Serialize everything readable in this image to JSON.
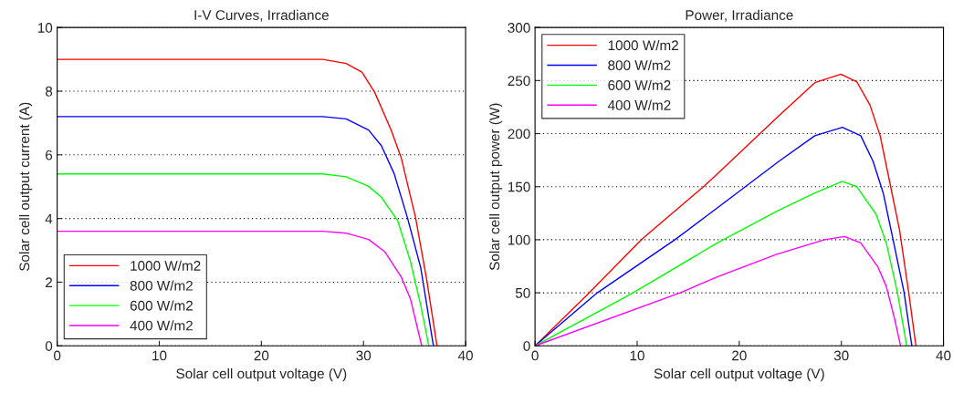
{
  "chart_data": [
    {
      "type": "line",
      "title": "I-V Curves, Irradiance",
      "xlabel": "Solar cell output voltage (V)",
      "ylabel": "Solar cell output current (A)",
      "xlim": [
        0,
        40
      ],
      "ylim": [
        0,
        10
      ],
      "xticks": [
        0,
        10,
        20,
        30,
        40
      ],
      "yticks": [
        0,
        2,
        4,
        6,
        8,
        10
      ],
      "grid": "y",
      "legend": "bottom left",
      "line_style": "solid",
      "marker": "none",
      "series": [
        {
          "name": "1000 W/m2",
          "color": "#ff0000",
          "x": [
            0,
            26,
            28.3,
            29.85,
            31.1,
            32.7,
            33.7,
            35.1,
            36.2,
            37.2
          ],
          "values": [
            9,
            9,
            8.87,
            8.6,
            7.96,
            6.78,
            5.9,
            4.03,
            2.06,
            0
          ]
        },
        {
          "name": "800 W/m2",
          "color": "#0000ff",
          "x": [
            0,
            26,
            28.3,
            30.5,
            31.75,
            33.0,
            34.3,
            35.6,
            36.85
          ],
          "values": [
            7.2,
            7.2,
            7.13,
            6.78,
            6.29,
            5.41,
            4.03,
            2.46,
            0
          ]
        },
        {
          "name": "600 W/m2",
          "color": "#00ff00",
          "x": [
            0,
            26,
            28.3,
            30.5,
            31.75,
            33.35,
            34.6,
            35.6,
            36.4
          ],
          "values": [
            5.4,
            5.4,
            5.31,
            5.01,
            4.67,
            3.93,
            2.65,
            1.28,
            0
          ]
        },
        {
          "name": "400 W/m2",
          "color": "#ff00ff",
          "x": [
            0,
            26,
            28.3,
            30.5,
            32.1,
            33.7,
            34.6,
            35.7
          ],
          "values": [
            3.6,
            3.6,
            3.54,
            3.34,
            2.95,
            2.16,
            1.47,
            0
          ]
        }
      ]
    },
    {
      "type": "line",
      "title": "Power, Irradiance",
      "xlabel": "Solar cell output voltage (V)",
      "ylabel": "Solar cell output power (W)",
      "xlim": [
        0,
        40
      ],
      "ylim": [
        0,
        300
      ],
      "xticks": [
        0,
        10,
        20,
        30,
        40
      ],
      "yticks": [
        0,
        50,
        100,
        150,
        200,
        250,
        300
      ],
      "grid": "y",
      "legend": "top left",
      "line_style": "solid",
      "marker": "none",
      "series": [
        {
          "name": "1000 W/m2",
          "color": "#ff0000",
          "x": [
            0,
            5,
            10.4,
            16.5,
            17.85,
            23.9,
            27.4,
            29.95,
            31.5,
            32.8,
            33.8,
            34.7,
            35.7,
            36.6,
            37.3
          ],
          "values": [
            0,
            47,
            100,
            150,
            162,
            217,
            248,
            256,
            249,
            227,
            198,
            156,
            109,
            50,
            0
          ]
        },
        {
          "name": "800 W/m2",
          "color": "#0000ff",
          "x": [
            0,
            6.1,
            13.7,
            17.85,
            23.9,
            27.4,
            30.1,
            31.9,
            33.1,
            34.1,
            35.0,
            36.15,
            36.9
          ],
          "values": [
            0,
            50,
            100,
            130,
            174,
            198,
            206,
            198,
            174,
            144,
            103,
            50,
            0
          ]
        },
        {
          "name": "600 W/m2",
          "color": "#00ff00",
          "x": [
            0,
            9.6,
            17.85,
            23.9,
            27.4,
            30.1,
            31.5,
            33.4,
            34.4,
            35.5,
            36.4
          ],
          "values": [
            0,
            50,
            97,
            128,
            144,
            155,
            150,
            124,
            97,
            50,
            0
          ]
        },
        {
          "name": "400 W/m2",
          "color": "#ff00ff",
          "x": [
            0,
            14.2,
            17.85,
            23.6,
            28.35,
            30.3,
            31.9,
            33.6,
            34.4,
            35.2,
            35.8
          ],
          "values": [
            0,
            50,
            65,
            86,
            100,
            103,
            97,
            74,
            56,
            26,
            0
          ]
        }
      ]
    }
  ]
}
